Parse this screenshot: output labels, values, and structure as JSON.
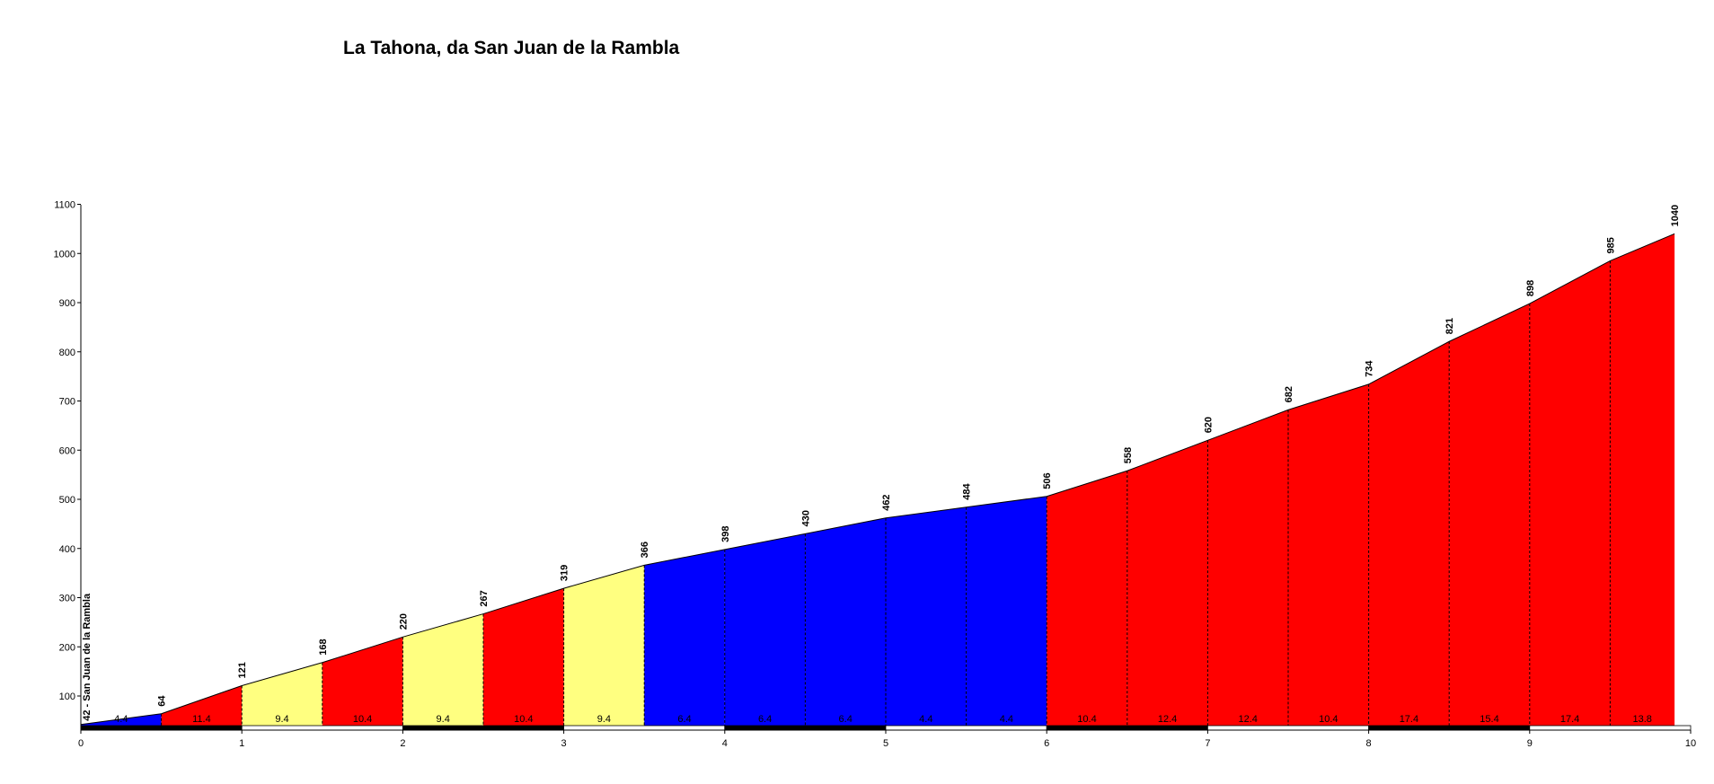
{
  "chart_data": {
    "type": "area",
    "title": "La Tahona, da San Juan de la Rambla",
    "xlabel": "",
    "ylabel": "",
    "xlim": [
      0,
      10
    ],
    "ylim": [
      42,
      1100
    ],
    "x_ticks": [
      "0",
      "1",
      "2",
      "3",
      "4",
      "5",
      "6",
      "7",
      "8",
      "9",
      "10"
    ],
    "y_ticks": [
      "100",
      "200",
      "300",
      "400",
      "500",
      "600",
      "700",
      "800",
      "900",
      "1000",
      "1100"
    ],
    "start_label": "42 - San Juan de la Rambla",
    "x": [
      0,
      0.5,
      1,
      1.5,
      2,
      2.5,
      3,
      3.5,
      4,
      4.5,
      5,
      5.5,
      6,
      6.5,
      7,
      7.5,
      8,
      8.5,
      9,
      9.5,
      9.9
    ],
    "elevation": [
      42,
      64,
      121,
      168,
      220,
      267,
      319,
      366,
      398,
      430,
      462,
      484,
      506,
      558,
      620,
      682,
      734,
      821,
      898,
      985,
      1040
    ],
    "elevation_labels": [
      "64",
      "121",
      "168",
      "220",
      "267",
      "319",
      "366",
      "398",
      "430",
      "462",
      "484",
      "506",
      "558",
      "620",
      "682",
      "734",
      "821",
      "898",
      "985",
      "1040"
    ],
    "segments": [
      {
        "from": 0,
        "to": 0.5,
        "gradient": "4.4",
        "color": "#0000ff"
      },
      {
        "from": 0.5,
        "to": 1,
        "gradient": "11.4",
        "color": "#ff0000"
      },
      {
        "from": 1,
        "to": 1.5,
        "gradient": "9.4",
        "color": "#ffff80"
      },
      {
        "from": 1.5,
        "to": 2,
        "gradient": "10.4",
        "color": "#ff0000"
      },
      {
        "from": 2,
        "to": 2.5,
        "gradient": "9.4",
        "color": "#ffff80"
      },
      {
        "from": 2.5,
        "to": 3,
        "gradient": "10.4",
        "color": "#ff0000"
      },
      {
        "from": 3,
        "to": 3.5,
        "gradient": "9.4",
        "color": "#ffff80"
      },
      {
        "from": 3.5,
        "to": 4,
        "gradient": "6.4",
        "color": "#0000ff"
      },
      {
        "from": 4,
        "to": 4.5,
        "gradient": "6.4",
        "color": "#0000ff"
      },
      {
        "from": 4.5,
        "to": 5,
        "gradient": "6.4",
        "color": "#0000ff"
      },
      {
        "from": 5,
        "to": 5.5,
        "gradient": "4.4",
        "color": "#0000ff"
      },
      {
        "from": 5.5,
        "to": 6,
        "gradient": "4.4",
        "color": "#0000ff"
      },
      {
        "from": 6,
        "to": 6.5,
        "gradient": "10.4",
        "color": "#ff0000"
      },
      {
        "from": 6.5,
        "to": 7,
        "gradient": "12.4",
        "color": "#ff0000"
      },
      {
        "from": 7,
        "to": 7.5,
        "gradient": "12.4",
        "color": "#ff0000"
      },
      {
        "from": 7.5,
        "to": 8,
        "gradient": "10.4",
        "color": "#ff0000"
      },
      {
        "from": 8,
        "to": 8.5,
        "gradient": "17.4",
        "color": "#ff0000"
      },
      {
        "from": 8.5,
        "to": 9,
        "gradient": "15.4",
        "color": "#ff0000"
      },
      {
        "from": 9,
        "to": 9.5,
        "gradient": "17.4",
        "color": "#ff0000"
      },
      {
        "from": 9.5,
        "to": 9.9,
        "gradient": "13.8",
        "color": "#ff0000"
      }
    ],
    "grid": false,
    "legend": "none"
  }
}
